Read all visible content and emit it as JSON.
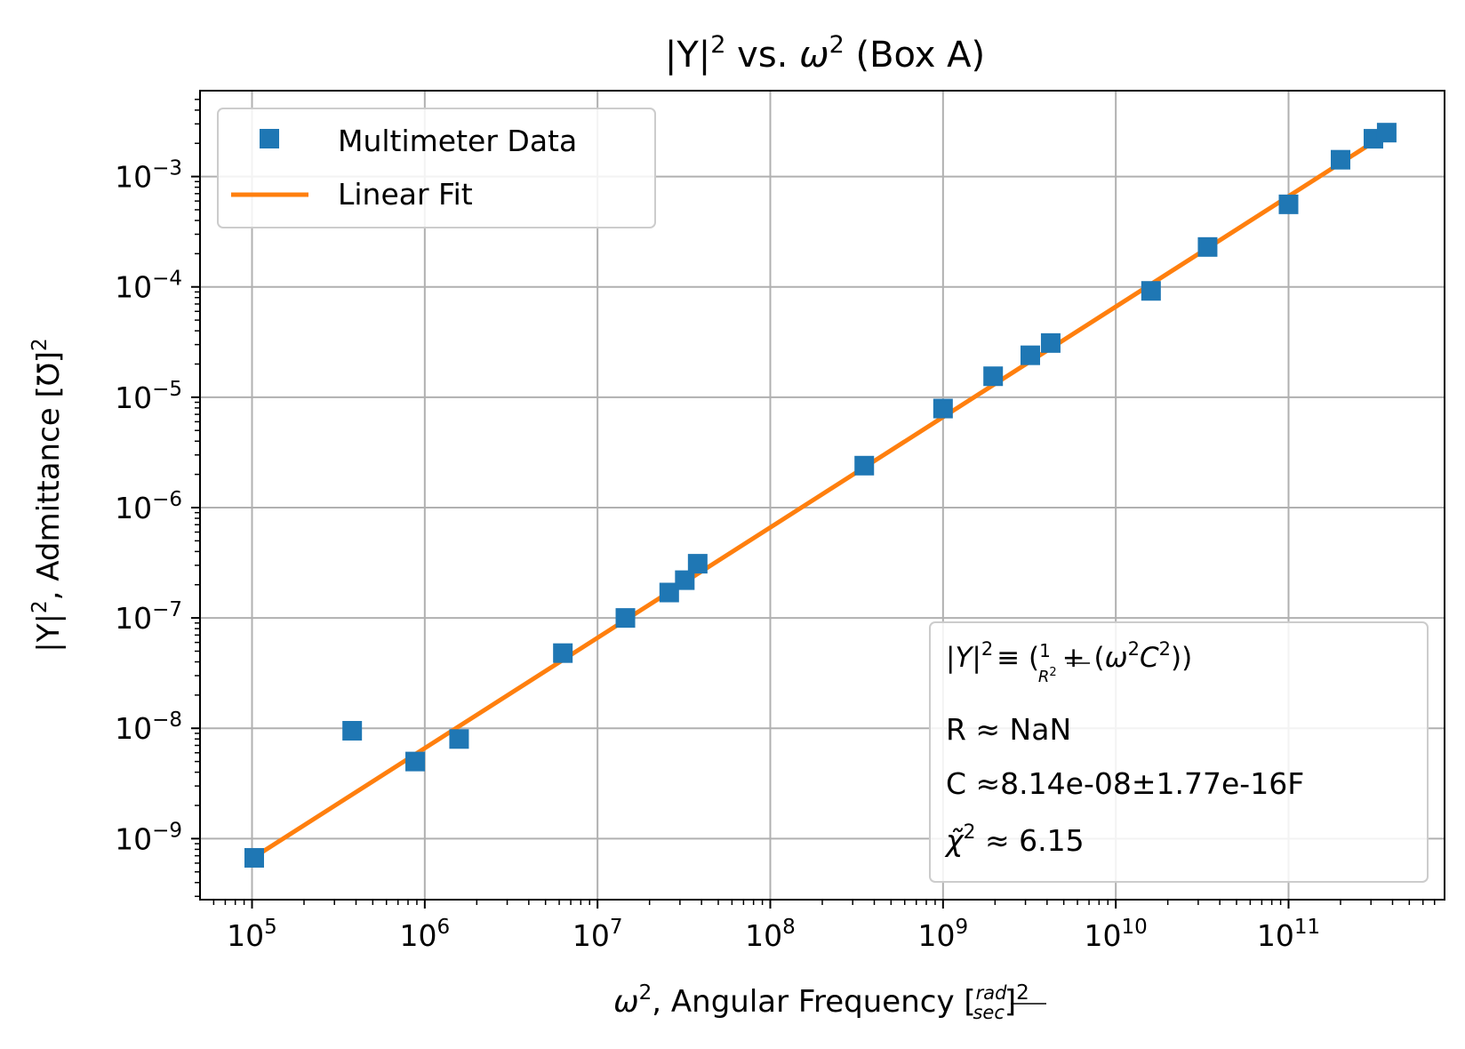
{
  "chart_data": {
    "type": "scatter",
    "title": {
      "base": "|Y|",
      "sup": "2",
      "mid": " vs. ",
      "omega": "ω",
      "omega_sup": "2",
      "tail": " (Box A)"
    },
    "xlabel": {
      "omega": "ω",
      "sup": "2",
      "text": ", Angular Frequency [",
      "frac_num": "rad",
      "frac_den": "sec",
      "close": "]",
      "close_sup": "2"
    },
    "ylabel": {
      "base": "|Y|",
      "sup": "2",
      "text": ", Admittance [℧]",
      "close_sup": "2"
    },
    "xscale": "log",
    "yscale": "log",
    "xlim": [
      50000,
      800000000000
    ],
    "ylim": [
      2.8e-10,
      0.006
    ],
    "grid": true,
    "x_ticks": [
      {
        "value": 100000,
        "base": "10",
        "exp": "5"
      },
      {
        "value": 1000000,
        "base": "10",
        "exp": "6"
      },
      {
        "value": 10000000,
        "base": "10",
        "exp": "7"
      },
      {
        "value": 100000000,
        "base": "10",
        "exp": "8"
      },
      {
        "value": 1000000000,
        "base": "10",
        "exp": "9"
      },
      {
        "value": 10000000000,
        "base": "10",
        "exp": "10"
      },
      {
        "value": 100000000000,
        "base": "10",
        "exp": "11"
      }
    ],
    "y_ticks": [
      {
        "value": 1e-09,
        "base": "10",
        "exp": "−9"
      },
      {
        "value": 1e-08,
        "base": "10",
        "exp": "−8"
      },
      {
        "value": 1e-07,
        "base": "10",
        "exp": "−7"
      },
      {
        "value": 1e-06,
        "base": "10",
        "exp": "−6"
      },
      {
        "value": 1e-05,
        "base": "10",
        "exp": "−5"
      },
      {
        "value": 0.0001,
        "base": "10",
        "exp": "−4"
      },
      {
        "value": 0.001,
        "base": "10",
        "exp": "−3"
      }
    ],
    "series": [
      {
        "name": "Multimeter Data",
        "kind": "marker",
        "color": "#1f77b4",
        "marker": "square",
        "points": [
          {
            "x": 103000,
            "y": 6.7e-10
          },
          {
            "x": 380000,
            "y": 9.5e-09
          },
          {
            "x": 880000,
            "y": 5e-09
          },
          {
            "x": 1580000,
            "y": 8e-09
          },
          {
            "x": 6300000,
            "y": 4.8e-08
          },
          {
            "x": 14500000,
            "y": 1e-07
          },
          {
            "x": 26000000,
            "y": 1.7e-07
          },
          {
            "x": 32000000,
            "y": 2.2e-07
          },
          {
            "x": 38000000,
            "y": 3.1e-07
          },
          {
            "x": 350000000,
            "y": 2.4e-06
          },
          {
            "x": 1000000000,
            "y": 7.9e-06
          },
          {
            "x": 1950000000,
            "y": 1.55e-05
          },
          {
            "x": 3200000000,
            "y": 2.4e-05
          },
          {
            "x": 4200000000,
            "y": 3.1e-05
          },
          {
            "x": 16000000000,
            "y": 9.2e-05
          },
          {
            "x": 34000000000,
            "y": 0.00023
          },
          {
            "x": 100000000000,
            "y": 0.00056
          },
          {
            "x": 200000000000,
            "y": 0.00142
          },
          {
            "x": 310000000000,
            "y": 0.0022
          },
          {
            "x": 370000000000,
            "y": 0.0025
          }
        ]
      },
      {
        "name": "Linear Fit",
        "kind": "line",
        "color": "#ff7f0e",
        "points": [
          {
            "x": 103000,
            "y": 6.8e-10
          },
          {
            "x": 370000000000,
            "y": 0.00245
          }
        ]
      }
    ],
    "legend": {
      "position": "top-left"
    },
    "annotation": {
      "position": "bottom-right",
      "eq": {
        "lhs": "|Y|",
        "lhs_sup": "2",
        "equiv": "≡ (",
        "frac_num": "1",
        "frac_den": "R",
        "frac_den_sup": "2",
        "plus": "+ (",
        "omega": "ω",
        "omega_sup": "2",
        "c": "C",
        "c_sup": "2",
        "close": "))"
      },
      "r_line": "R ≈ NaN",
      "c_line": "C ≈8.14e-08±1.77e-16F",
      "chi_sym": "χ̃",
      "chi_sup": "2",
      "chi_rest": " ≈ 6.15"
    }
  }
}
